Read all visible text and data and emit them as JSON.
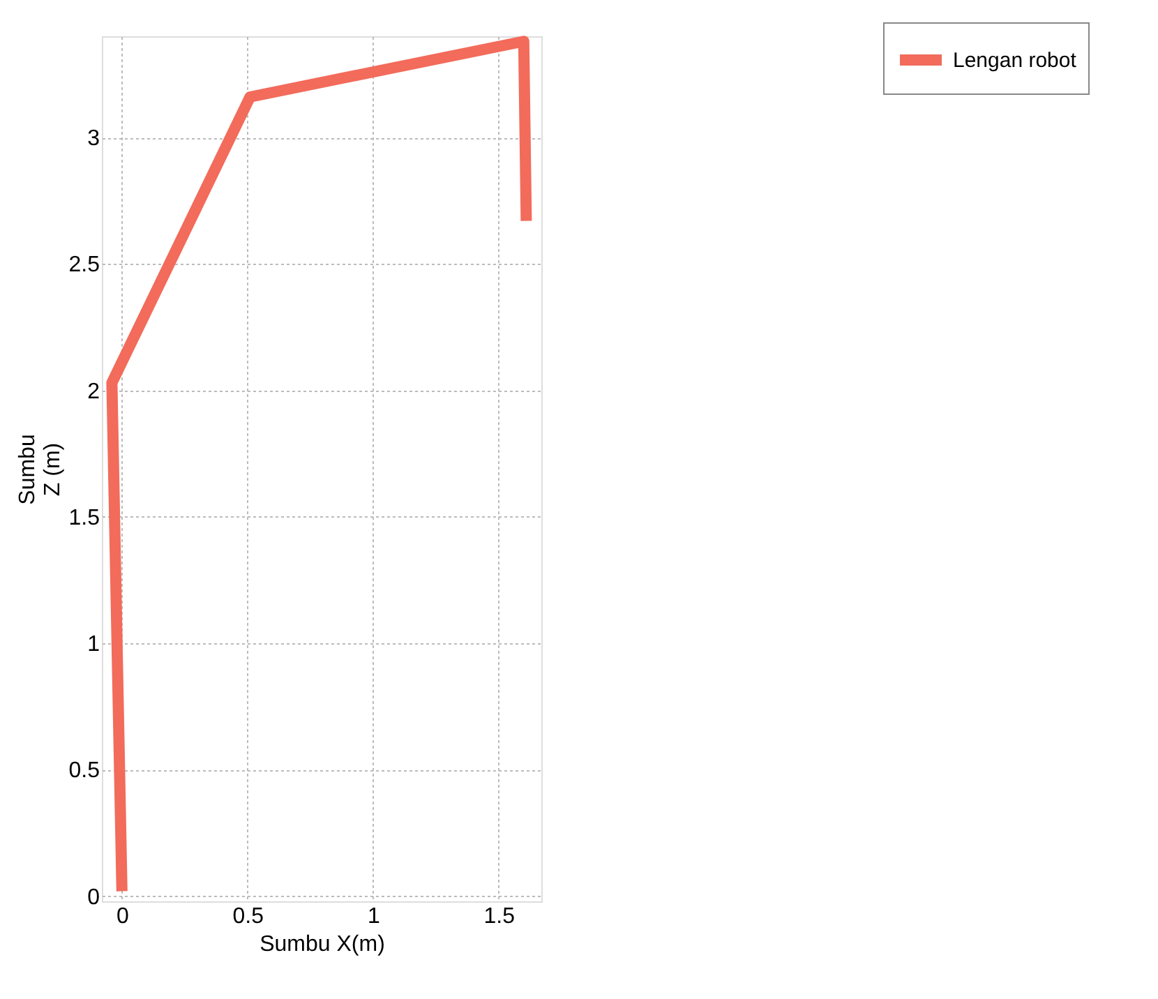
{
  "chart_data": {
    "type": "line",
    "xlabel": "Sumbu X(m)",
    "ylabel": "Sumbu Z (m)",
    "x": [
      0,
      -0.04,
      0.51,
      1.6,
      1.61
    ],
    "series": [
      {
        "name": "Lengan robot",
        "color": "#f26b5b",
        "values": [
          0.02,
          2.03,
          3.16,
          3.38,
          2.67
        ]
      }
    ],
    "xlim": [
      -0.08,
      1.67
    ],
    "ylim": [
      -0.02,
      3.4
    ],
    "xticks": [
      0,
      0.5,
      1,
      1.5
    ],
    "yticks": [
      0,
      0.5,
      1,
      1.5,
      2,
      2.5,
      3
    ],
    "grid": true,
    "legend": "top right",
    "line_style": "solid",
    "marker": "none"
  }
}
